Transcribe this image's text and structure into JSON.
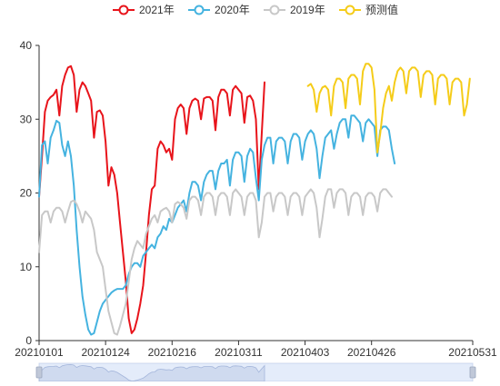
{
  "chart_data": {
    "type": "line",
    "legend_position": "top-center",
    "grid": false,
    "x_tick_labels": [
      "20210101",
      "20210124",
      "20210216",
      "20210311",
      "20210403",
      "20210426",
      "20210531"
    ],
    "x_range": [
      "20210101",
      "20210531"
    ],
    "ylim": [
      0,
      40
    ],
    "y_ticks": [
      0,
      10,
      20,
      30,
      40
    ],
    "colors": {
      "2021年": "#e8141b",
      "2020年": "#45b3e0",
      "2019年": "#c8c8c8",
      "预测值": "#f5cc19"
    },
    "series": [
      {
        "name": "2021年",
        "x_start": "20210101",
        "values": [
          19.5,
          25.0,
          31.0,
          32.5,
          33.0,
          33.3,
          34.0,
          30.5,
          34.5,
          36.0,
          37.0,
          37.2,
          36.0,
          31.0,
          34.0,
          35.0,
          34.5,
          33.5,
          32.5,
          27.5,
          31.0,
          31.2,
          30.5,
          27.0,
          21.0,
          23.5,
          22.5,
          20.0,
          16.0,
          12.0,
          8.0,
          3.0,
          1.0,
          1.5,
          3.0,
          5.0,
          7.5,
          12.0,
          17.0,
          20.5,
          21.0,
          26.0,
          27.0,
          26.5,
          25.5,
          26.0,
          24.5,
          30.0,
          31.5,
          32.0,
          31.5,
          28.0,
          31.5,
          32.5,
          32.8,
          32.5,
          30.0,
          32.8,
          33.0,
          33.0,
          32.5,
          28.5,
          33.0,
          34.0,
          34.0,
          33.5,
          30.5,
          34.0,
          34.5,
          34.0,
          33.5,
          29.5,
          33.0,
          33.2,
          32.5,
          30.0,
          20.5,
          28.0,
          35.0
        ]
      },
      {
        "name": "2020年",
        "x_start": "20210101",
        "values": [
          19.5,
          26.5,
          27.0,
          24.0,
          27.5,
          28.5,
          29.8,
          29.5,
          26.5,
          25.0,
          27.0,
          25.0,
          21.0,
          15.0,
          10.0,
          6.0,
          3.5,
          1.5,
          0.8,
          1.0,
          2.5,
          4.0,
          5.0,
          5.5,
          6.0,
          6.5,
          6.8,
          7.0,
          7.0,
          7.0,
          7.5,
          9.0,
          10.0,
          10.5,
          10.5,
          10.0,
          11.5,
          12.0,
          12.5,
          13.0,
          12.5,
          14.0,
          14.5,
          15.5,
          15.0,
          16.5,
          16.0,
          17.0,
          18.0,
          18.5,
          19.0,
          17.5,
          20.0,
          21.5,
          21.5,
          21.0,
          19.0,
          21.5,
          22.5,
          23.0,
          23.0,
          20.5,
          23.0,
          24.0,
          24.0,
          24.5,
          21.0,
          24.5,
          25.5,
          25.5,
          25.0,
          21.5,
          25.0,
          26.0,
          25.5,
          22.0,
          19.0,
          24.5,
          26.5,
          27.5,
          27.5,
          24.0,
          27.0,
          27.5,
          27.5,
          27.0,
          24.0,
          27.0,
          28.0,
          28.0,
          27.5,
          24.5,
          27.0,
          28.0,
          28.5,
          28.0,
          26.0,
          22.0,
          25.0,
          27.5,
          28.0,
          28.5,
          26.0,
          28.0,
          29.5,
          30.0,
          30.0,
          27.5,
          30.5,
          30.5,
          30.0,
          29.5,
          27.0,
          29.5,
          30.0,
          29.5,
          29.0,
          25.0,
          28.5,
          29.0,
          29.0,
          28.5,
          26.0,
          24.0
        ]
      },
      {
        "name": "2019年",
        "x_start": "20210101",
        "values": [
          12.0,
          17.0,
          17.5,
          17.5,
          16.0,
          17.5,
          18.0,
          18.0,
          17.5,
          16.0,
          17.5,
          18.8,
          19.0,
          18.5,
          17.5,
          16.0,
          17.5,
          17.0,
          16.5,
          15.0,
          12.0,
          11.0,
          10.0,
          7.0,
          4.0,
          2.5,
          1.0,
          0.8,
          2.0,
          3.5,
          5.0,
          8.0,
          11.0,
          12.5,
          13.5,
          13.0,
          12.5,
          14.5,
          15.5,
          16.5,
          17.0,
          16.0,
          17.5,
          17.8,
          18.0,
          17.5,
          16.0,
          18.5,
          18.8,
          18.5,
          18.0,
          16.5,
          19.0,
          19.5,
          19.5,
          19.0,
          17.0,
          19.5,
          20.0,
          20.0,
          19.5,
          17.0,
          19.5,
          20.0,
          20.0,
          19.5,
          17.0,
          20.0,
          20.5,
          20.0,
          19.5,
          17.0,
          19.5,
          20.0,
          20.0,
          19.0,
          14.0,
          16.0,
          19.5,
          20.0,
          20.0,
          17.5,
          19.5,
          20.0,
          20.0,
          19.5,
          17.0,
          19.5,
          20.0,
          20.0,
          19.5,
          17.0,
          19.5,
          20.0,
          20.5,
          20.0,
          18.0,
          14.0,
          16.5,
          19.5,
          20.5,
          20.5,
          18.0,
          20.0,
          20.5,
          20.5,
          20.0,
          17.0,
          19.5,
          20.0,
          20.0,
          19.5,
          17.0,
          19.5,
          20.0,
          20.0,
          19.5,
          17.5,
          20.0,
          20.5,
          20.5,
          20.0,
          19.5
        ]
      },
      {
        "name": "预测值",
        "x_start": "20210404",
        "values": [
          34.5,
          34.8,
          34.0,
          31.0,
          33.5,
          34.3,
          34.5,
          34.0,
          30.5,
          34.5,
          35.5,
          35.5,
          35.0,
          31.5,
          35.5,
          36.0,
          36.0,
          35.5,
          32.0,
          36.5,
          37.5,
          37.5,
          37.0,
          34.0,
          25.5,
          28.0,
          31.5,
          33.5,
          34.5,
          32.5,
          35.0,
          36.5,
          37.0,
          36.5,
          33.5,
          36.5,
          37.0,
          37.0,
          36.5,
          33.0,
          36.0,
          36.5,
          36.5,
          36.0,
          32.0,
          35.5,
          36.0,
          36.0,
          35.5,
          32.0,
          35.0,
          35.5,
          35.5,
          35.0,
          30.5,
          32.0,
          35.5
        ]
      }
    ]
  }
}
